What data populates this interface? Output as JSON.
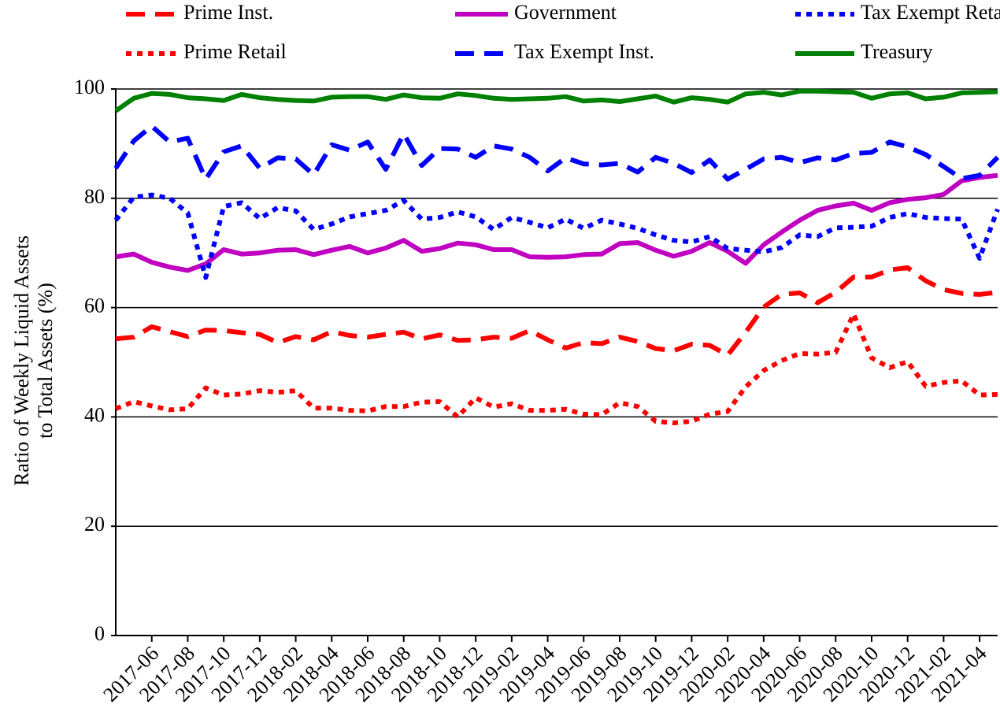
{
  "chart_data": {
    "type": "line",
    "ylabel": [
      "Ratio of Weekly Liquid Assets",
      "to Total Assets (%)"
    ],
    "categories": [
      null,
      null,
      "2017-06",
      null,
      "2017-08",
      null,
      "2017-10",
      null,
      "2017-12",
      null,
      "2018-02",
      null,
      "2018-04",
      null,
      "2018-06",
      null,
      "2018-08",
      null,
      "2018-10",
      null,
      "2018-12",
      null,
      "2019-02",
      null,
      "2019-04",
      null,
      "2019-06",
      null,
      "2019-08",
      null,
      "2019-10",
      null,
      "2019-12",
      null,
      "2020-02",
      null,
      "2020-04",
      null,
      "2020-06",
      null,
      "2020-08",
      null,
      "2020-10",
      null,
      "2020-12",
      null,
      "2021-02",
      null,
      "2021-04",
      null
    ],
    "ylim": [
      0,
      100
    ],
    "yticks": [
      0,
      20,
      40,
      60,
      80,
      100
    ],
    "grid": true,
    "legend": "top",
    "series": [
      {
        "name": "Prime Inst.",
        "color": "#ff0000",
        "style": "dashed",
        "values": [
          54.3,
          54.6,
          56.5,
          55.6,
          54.7,
          55.9,
          55.8,
          55.4,
          55.1,
          53.6,
          54.7,
          54.1,
          55.6,
          54.9,
          54.6,
          55.1,
          55.5,
          54.3,
          55,
          54,
          54.1,
          54.6,
          54.4,
          55.8,
          54.1,
          52.6,
          53.6,
          53.4,
          54.6,
          53.8,
          52.5,
          52.1,
          53.3,
          53.1,
          51.3,
          55.5,
          60.1,
          62.4,
          62.7,
          60.9,
          62.8,
          65.6,
          65.6,
          66.9,
          67.3,
          64.9,
          63.3,
          62.6,
          62.4,
          62.8
        ]
      },
      {
        "name": "Prime Retail",
        "color": "#ff0000",
        "style": "dotted",
        "values": [
          41.5,
          42.8,
          42,
          41.3,
          41.5,
          45.3,
          44,
          44.2,
          44.8,
          44.5,
          44.8,
          41.6,
          41.6,
          41.2,
          41.1,
          41.9,
          41.9,
          42.7,
          42.8,
          40,
          43.5,
          41.8,
          42.4,
          41.2,
          41.2,
          41.4,
          40.5,
          40.4,
          42.6,
          41.9,
          39.2,
          38.9,
          39.2,
          40.5,
          41,
          45.5,
          48.5,
          50.3,
          51.6,
          51.5,
          51.8,
          58.8,
          50.8,
          49,
          50.1,
          45.6,
          46.3,
          46.6,
          44,
          44.1
        ]
      },
      {
        "name": "Government",
        "color": "#c000c0",
        "style": "solid",
        "values": [
          69.3,
          69.8,
          68.3,
          67.4,
          66.8,
          68,
          70.6,
          69.8,
          70,
          70.5,
          70.6,
          69.7,
          70.5,
          71.2,
          70,
          70.9,
          72.3,
          70.3,
          70.8,
          71.8,
          71.5,
          70.6,
          70.6,
          69.3,
          69.2,
          69.3,
          69.7,
          69.8,
          71.7,
          71.9,
          70.5,
          69.4,
          70.3,
          71.9,
          70.3,
          68.1,
          71.5,
          73.8,
          76,
          77.8,
          78.6,
          79.1,
          77.8,
          79.2,
          79.8,
          80.1,
          80.7,
          83.2,
          83.8,
          84.2
        ]
      },
      {
        "name": "Tax Exempt Inst.",
        "color": "#0000ff",
        "style": "dashed",
        "values": [
          85.5,
          90.5,
          93.2,
          90.3,
          91,
          83.5,
          88.5,
          89.6,
          85.5,
          87.4,
          87.2,
          84.3,
          89.8,
          88.8,
          90.3,
          85.3,
          91.8,
          86,
          89.1,
          89,
          87.5,
          89.6,
          89,
          87.5,
          85,
          87.4,
          86.3,
          86.1,
          86.4,
          84.8,
          87.5,
          86.4,
          84.7,
          87,
          83.5,
          85.3,
          87.2,
          87.5,
          86.5,
          87.4,
          87,
          88.2,
          88.4,
          90.3,
          89.4,
          88,
          85.8,
          83.6,
          84.2,
          87.5
        ]
      },
      {
        "name": "Tax Exempt Retail",
        "color": "#0000ff",
        "style": "dotted",
        "values": [
          76,
          80.2,
          80.6,
          80,
          77.3,
          65.5,
          78.5,
          79.2,
          76.3,
          78.3,
          77.7,
          74.3,
          75.3,
          76.6,
          77.2,
          77.8,
          79.6,
          76.2,
          76.5,
          77.5,
          76.6,
          74.3,
          76.5,
          75.6,
          74.6,
          76.2,
          74.5,
          76,
          75.3,
          74.5,
          73.3,
          72.3,
          72,
          73,
          70.8,
          70.5,
          70.2,
          71,
          73.3,
          73,
          74.6,
          74.7,
          74.9,
          76.5,
          77.2,
          76.5,
          76.3,
          76.2,
          69,
          78
        ]
      },
      {
        "name": "Treasury",
        "color": "#008000",
        "style": "solid",
        "values": [
          96,
          98.3,
          99.2,
          99,
          98.4,
          98.2,
          97.9,
          99,
          98.4,
          98.1,
          97.9,
          97.8,
          98.5,
          98.6,
          98.6,
          98.1,
          98.9,
          98.4,
          98.3,
          99.1,
          98.8,
          98.3,
          98.1,
          98.2,
          98.3,
          98.6,
          97.8,
          98,
          97.7,
          98.2,
          98.7,
          97.6,
          98.4,
          98.1,
          97.6,
          99.1,
          99.4,
          98.9,
          99.6,
          99.6,
          99.5,
          99.4,
          98.3,
          99.1,
          99.3,
          98.2,
          98.5,
          99.3,
          99.4,
          99.5
        ]
      }
    ]
  }
}
